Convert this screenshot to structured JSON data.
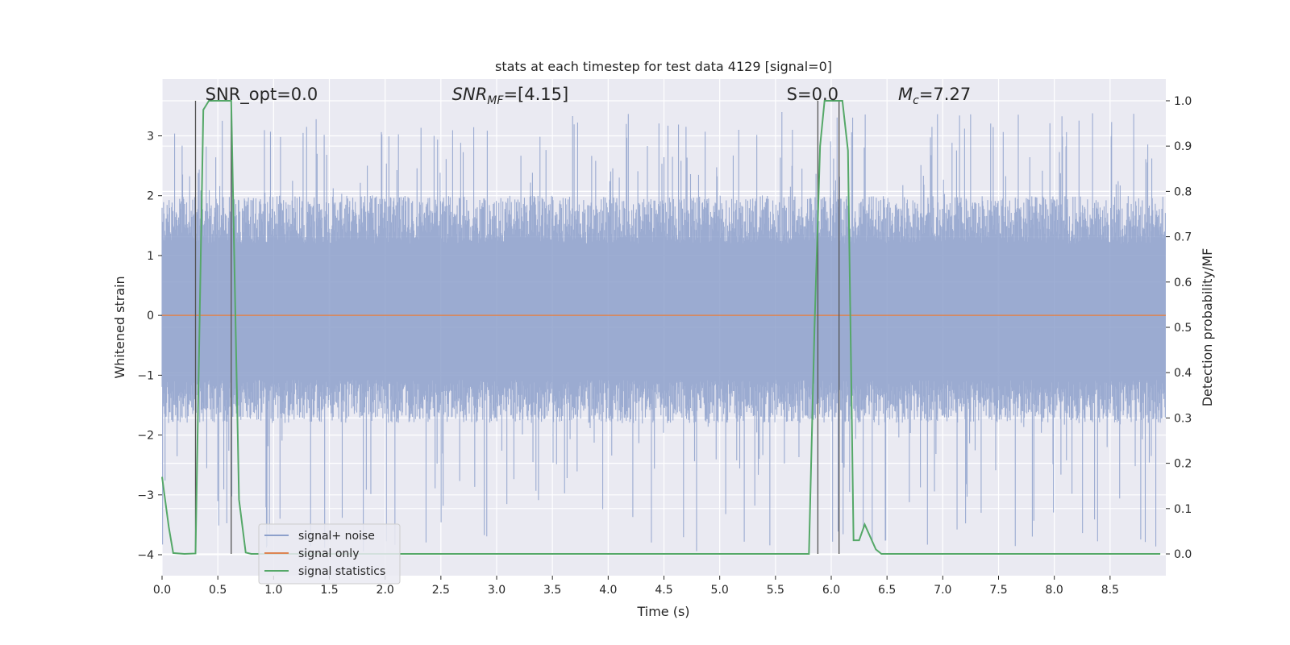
{
  "chart_data": {
    "type": "line",
    "title": "stats at each timestep for test data 4129 [signal=0]",
    "xlabel": "Time (s)",
    "ylabel": "Whitened strain",
    "y2label": "Detection probability/MF",
    "xlim": [
      0,
      9.0
    ],
    "ylim": [
      -4.35,
      3.95
    ],
    "y2lim": [
      -0.048,
      1.048
    ],
    "x_ticks": [
      0.0,
      0.5,
      1.0,
      1.5,
      2.0,
      2.5,
      3.0,
      3.5,
      4.0,
      4.5,
      5.0,
      5.5,
      6.0,
      6.5,
      7.0,
      7.5,
      8.0,
      8.5
    ],
    "x_tick_labels": [
      "0.0",
      "0.5",
      "1.0",
      "1.5",
      "2.0",
      "2.5",
      "3.0",
      "3.5",
      "4.0",
      "4.5",
      "5.0",
      "5.5",
      "6.0",
      "6.5",
      "7.0",
      "7.5",
      "8.0",
      "8.5"
    ],
    "y_ticks": [
      -4,
      -3,
      -2,
      -1,
      0,
      1,
      2,
      3
    ],
    "y_tick_labels": [
      "−4",
      "−3",
      "−2",
      "−1",
      "0",
      "1",
      "2",
      "3"
    ],
    "y2_ticks": [
      0.0,
      0.1,
      0.2,
      0.3,
      0.4,
      0.5,
      0.6,
      0.7,
      0.8,
      0.9,
      1.0
    ],
    "y2_tick_labels": [
      "0.0",
      "0.1",
      "0.2",
      "0.3",
      "0.4",
      "0.5",
      "0.6",
      "0.7",
      "0.8",
      "0.9",
      "1.0"
    ],
    "grid": true,
    "legend_placement": "lower-left",
    "annotations": [
      {
        "text": "SNR_opt=0.0",
        "x": 0.2
      },
      {
        "text": "SNR_MF=[4.15]",
        "x": 2.6
      },
      {
        "text": "S=0.0",
        "x": 5.6
      },
      {
        "text": "M_c=7.27",
        "x": 6.6
      }
    ],
    "vertical_lines_x": [
      0.3,
      0.62,
      5.88,
      6.07
    ],
    "series": [
      {
        "name": "signal+ noise",
        "color": "#8da0cb",
        "noise_envelope": {
          "typical_low": -1.8,
          "typical_high": 2.0,
          "min": -4.0,
          "max": 3.4
        }
      },
      {
        "name": "signal only",
        "color": "#dd8452",
        "x": [
          0,
          9.0
        ],
        "y": [
          0,
          0
        ]
      },
      {
        "name": "signal statistics",
        "color": "#55a868",
        "axis": "right",
        "x": [
          0.0,
          0.06,
          0.1,
          0.2,
          0.3,
          0.37,
          0.42,
          0.5,
          0.62,
          0.69,
          0.75,
          0.8,
          1.0,
          5.8,
          5.85,
          5.9,
          5.94,
          6.0,
          6.1,
          6.15,
          6.2,
          6.25,
          6.3,
          6.4,
          6.45,
          6.5,
          7.0,
          8.0,
          8.95
        ],
        "y": [
          0.17,
          0.06,
          0.002,
          0.0,
          0.001,
          0.98,
          1.0,
          1.0,
          1.0,
          0.12,
          0.003,
          0.0,
          0.0,
          0.0,
          0.5,
          0.9,
          1.0,
          1.0,
          1.0,
          0.89,
          0.03,
          0.03,
          0.065,
          0.01,
          0.0,
          0.0,
          0.0,
          0.0,
          0.0
        ]
      }
    ]
  }
}
